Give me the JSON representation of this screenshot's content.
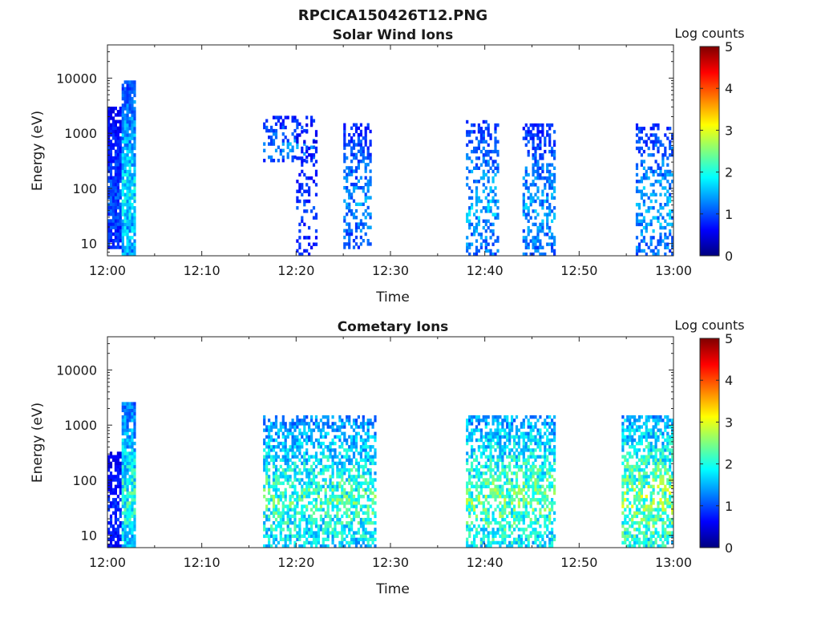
{
  "title": "RPCICA150426T12.PNG",
  "colormap": {
    "name": "jet",
    "stops": [
      "#00007f",
      "#0000ff",
      "#007fff",
      "#00ffff",
      "#7fff7f",
      "#ffff00",
      "#ff7f00",
      "#ff0000",
      "#7f0000"
    ],
    "title": "Log counts",
    "range": [
      0,
      5
    ],
    "ticks": [
      "0",
      "1",
      "2",
      "3",
      "4",
      "5"
    ]
  },
  "chart_data": [
    {
      "type": "heatmap",
      "title": "Solar Wind Ions",
      "xlabel": "Time",
      "ylabel": "Energy (eV)",
      "x_ticks": [
        "12:00",
        "12:10",
        "12:20",
        "12:30",
        "12:40",
        "12:50",
        "13:00"
      ],
      "x_range_minutes": [
        0,
        60
      ],
      "y_scale": "log",
      "y_range_eV": [
        6,
        40000
      ],
      "y_ticks": [
        "10",
        "100",
        "1000",
        "10000"
      ],
      "color_value": "log10 counts",
      "color_range": [
        0,
        5
      ],
      "bursts": [
        {
          "t_start": 0.0,
          "t_end": 1.5,
          "e_low": 8,
          "e_high": 3000,
          "level_max": 1.3,
          "density": 0.85
        },
        {
          "t_start": 1.5,
          "t_end": 2.8,
          "e_low": 6,
          "e_high": 8000,
          "level_max": 2.3,
          "density": 0.9
        },
        {
          "t_start": 16.5,
          "t_end": 22.0,
          "e_low": 300,
          "e_high": 2000,
          "level_max": 1.6,
          "density": 0.3
        },
        {
          "t_start": 20.0,
          "t_end": 22.2,
          "e_low": 6,
          "e_high": 1500,
          "level_max": 1.2,
          "density": 0.25
        },
        {
          "t_start": 25.0,
          "t_end": 28.0,
          "e_low": 8,
          "e_high": 1500,
          "level_max": 1.7,
          "density": 0.45
        },
        {
          "t_start": 38.0,
          "t_end": 41.5,
          "e_low": 6,
          "e_high": 1600,
          "level_max": 1.9,
          "density": 0.4
        },
        {
          "t_start": 44.0,
          "t_end": 47.5,
          "e_low": 6,
          "e_high": 1500,
          "level_max": 1.8,
          "density": 0.45
        },
        {
          "t_start": 56.0,
          "t_end": 60.0,
          "e_low": 6,
          "e_high": 1500,
          "level_max": 1.9,
          "density": 0.4
        }
      ]
    },
    {
      "type": "heatmap",
      "title": "Cometary Ions",
      "xlabel": "Time",
      "ylabel": "Energy (eV)",
      "x_ticks": [
        "12:00",
        "12:10",
        "12:20",
        "12:30",
        "12:40",
        "12:50",
        "13:00"
      ],
      "x_range_minutes": [
        0,
        60
      ],
      "y_scale": "log",
      "y_range_eV": [
        6,
        40000
      ],
      "y_ticks": [
        "10",
        "100",
        "1000",
        "10000"
      ],
      "color_value": "log10 counts",
      "color_range": [
        0,
        5
      ],
      "bursts": [
        {
          "t_start": 0.0,
          "t_end": 1.5,
          "e_low": 6,
          "e_high": 300,
          "level_max": 1.1,
          "density": 0.7
        },
        {
          "t_start": 1.5,
          "t_end": 2.8,
          "e_low": 6,
          "e_high": 2500,
          "level_max": 2.6,
          "density": 0.9
        },
        {
          "t_start": 16.5,
          "t_end": 28.5,
          "e_low": 6,
          "e_high": 1500,
          "level_max": 2.8,
          "density": 0.6
        },
        {
          "t_start": 38.0,
          "t_end": 47.5,
          "e_low": 6,
          "e_high": 1500,
          "level_max": 3.0,
          "density": 0.6
        },
        {
          "t_start": 54.5,
          "t_end": 60.0,
          "e_low": 6,
          "e_high": 1500,
          "level_max": 3.2,
          "density": 0.65
        }
      ]
    }
  ]
}
